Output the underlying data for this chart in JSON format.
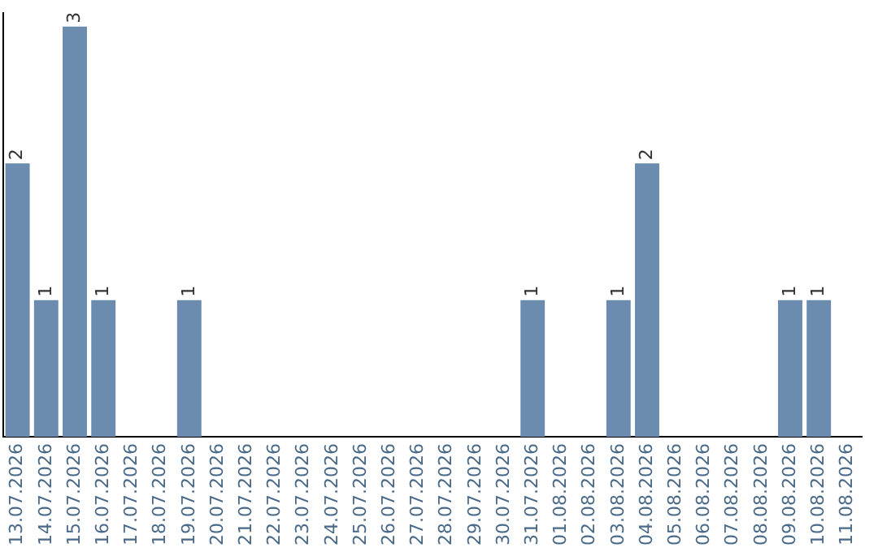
{
  "chart_data": {
    "type": "bar",
    "categories": [
      "13.07.2026",
      "14.07.2026",
      "15.07.2026",
      "16.07.2026",
      "17.07.2026",
      "18.07.2026",
      "19.07.2026",
      "20.07.2026",
      "21.07.2026",
      "22.07.2026",
      "23.07.2026",
      "24.07.2026",
      "25.07.2026",
      "26.07.2026",
      "27.07.2026",
      "28.07.2026",
      "29.07.2026",
      "30.07.2026",
      "31.07.2026",
      "01.08.2026",
      "02.08.2026",
      "03.08.2026",
      "04.08.2026",
      "05.08.2026",
      "06.08.2026",
      "07.08.2026",
      "08.08.2026",
      "09.08.2026",
      "10.08.2026",
      "11.08.2026"
    ],
    "values": [
      2,
      1,
      3,
      1,
      0,
      0,
      1,
      0,
      0,
      0,
      0,
      0,
      0,
      0,
      0,
      0,
      0,
      0,
      1,
      0,
      0,
      1,
      2,
      0,
      0,
      0,
      0,
      1,
      1,
      0
    ],
    "value_labels": [
      "2",
      "1",
      "3",
      "1",
      null,
      null,
      "1",
      null,
      null,
      null,
      null,
      null,
      null,
      null,
      null,
      null,
      null,
      null,
      "1",
      null,
      null,
      "1",
      "2",
      null,
      null,
      null,
      null,
      "1",
      "1",
      null
    ],
    "color": "#6b8cae",
    "ylim": [
      0,
      3.1
    ],
    "grid": false,
    "legend": false,
    "tick_labels": "x"
  }
}
